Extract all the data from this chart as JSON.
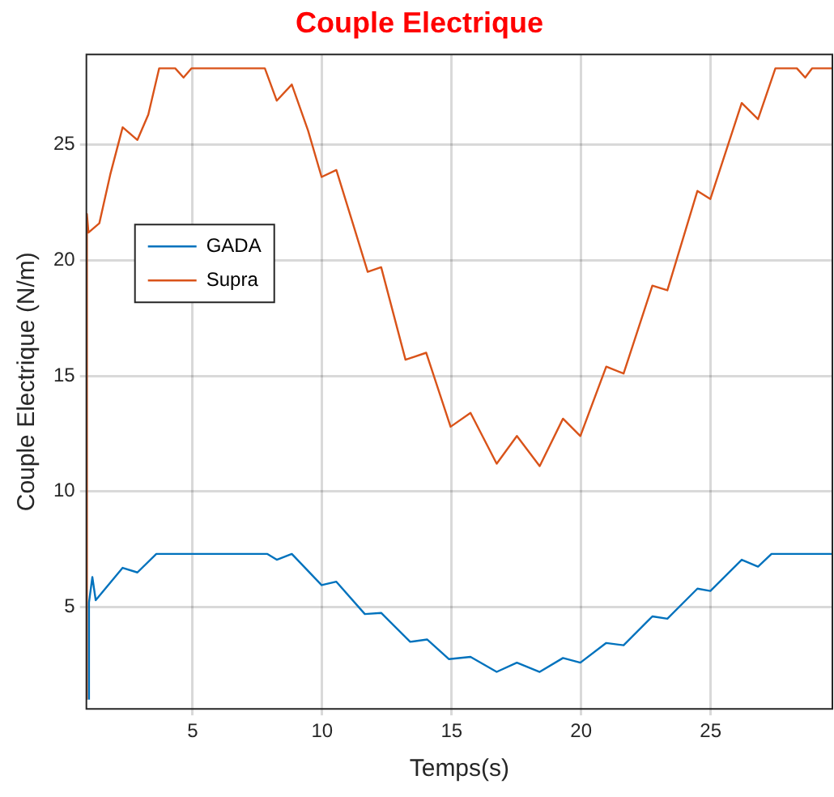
{
  "chart_data": {
    "type": "line",
    "title": "Couple Electrique",
    "xlabel": "Temps(s)",
    "ylabel": "Couple Electrique (N/m)",
    "xlim": [
      0.9,
      29.7
    ],
    "ylim": [
      0.6,
      28.9
    ],
    "xticks": [
      5,
      10,
      15,
      20,
      25
    ],
    "yticks": [
      5,
      10,
      15,
      20,
      25
    ],
    "grid": true,
    "legend": "top left",
    "marker": "none",
    "line_style": "solid",
    "series": [
      {
        "name": "GADA",
        "color": "#0072bd",
        "x": [
          1.0,
          1.0,
          1.13,
          1.26,
          2.3,
          2.87,
          3.6,
          7.89,
          8.25,
          8.83,
          9.98,
          10.55,
          11.65,
          12.28,
          13.4,
          14.06,
          14.9,
          15.73,
          16.74,
          17.52,
          18.4,
          19.3,
          19.97,
          20.97,
          21.64,
          22.75,
          23.33,
          24.49,
          24.99,
          26.2,
          26.83,
          27.35,
          29.7
        ],
        "values": [
          1.0,
          5.2,
          6.3,
          5.3,
          6.7,
          6.5,
          7.3,
          7.3,
          7.05,
          7.3,
          5.95,
          6.1,
          4.7,
          4.75,
          3.5,
          3.6,
          2.75,
          2.85,
          2.2,
          2.6,
          2.2,
          2.8,
          2.6,
          3.45,
          3.35,
          4.6,
          4.5,
          5.8,
          5.7,
          7.05,
          6.75,
          7.3,
          7.3
        ]
      },
      {
        "name": "Supra",
        "color": "#d95319",
        "x": [
          0.92,
          0.92,
          0.98,
          1.4,
          1.82,
          2.3,
          2.87,
          3.29,
          3.71,
          4.33,
          4.65,
          4.96,
          7.79,
          8.25,
          8.83,
          9.46,
          9.98,
          10.55,
          11.24,
          11.76,
          12.28,
          13.22,
          14.02,
          14.96,
          15.73,
          16.74,
          17.52,
          18.4,
          19.3,
          19.97,
          20.97,
          21.64,
          22.75,
          23.33,
          24.49,
          24.99,
          26.2,
          26.83,
          27.5,
          28.33,
          28.65,
          28.92,
          29.7
        ],
        "values": [
          1.0,
          22.0,
          21.2,
          21.6,
          23.7,
          25.75,
          25.2,
          26.3,
          28.3,
          28.3,
          27.9,
          28.3,
          28.3,
          26.9,
          27.6,
          25.6,
          23.6,
          23.9,
          21.4,
          19.5,
          19.7,
          15.7,
          16.0,
          12.8,
          13.4,
          11.2,
          12.4,
          11.1,
          13.15,
          12.4,
          15.4,
          15.1,
          18.9,
          18.7,
          23.0,
          22.65,
          26.8,
          26.1,
          28.3,
          28.3,
          27.9,
          28.3,
          28.3
        ]
      }
    ]
  }
}
